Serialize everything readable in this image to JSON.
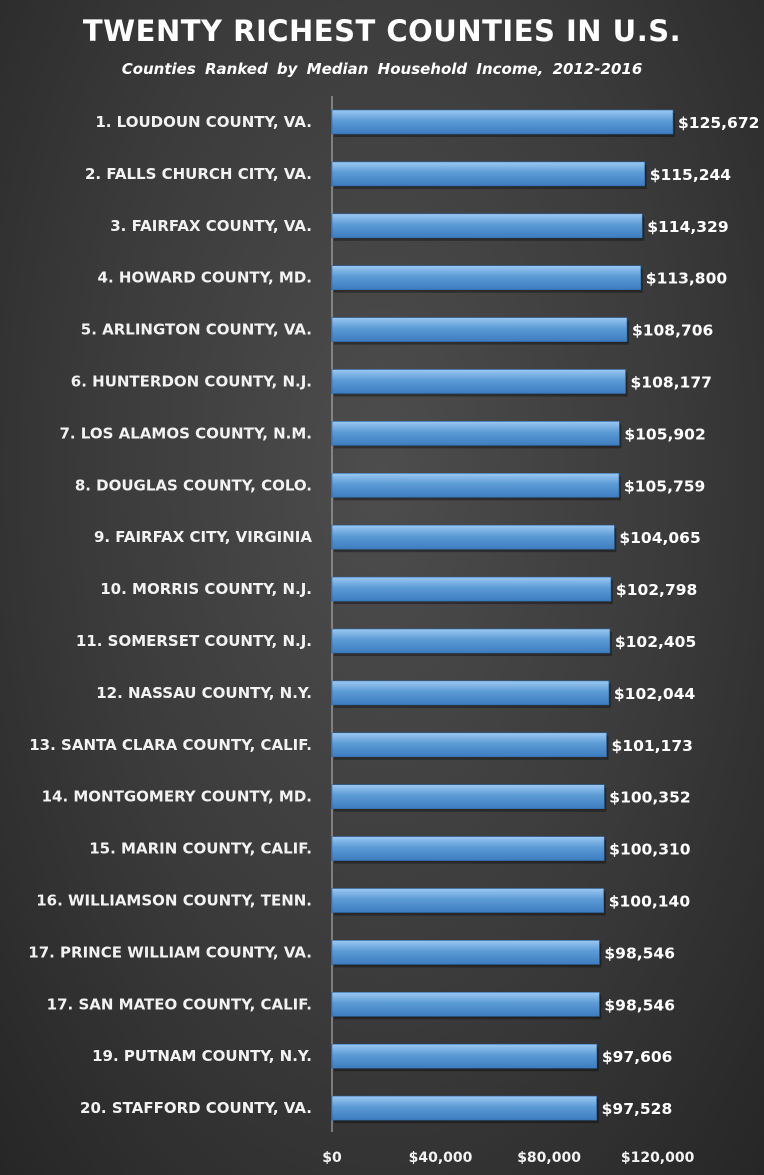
{
  "chart_data": {
    "type": "bar",
    "orientation": "horizontal",
    "title": "TWENTY RICHEST COUNTIES IN U.S.",
    "subtitle": "Counties Ranked by Median Household Income, 2012-2016",
    "categories": [
      "1. LOUDOUN COUNTY, VA.",
      "2. FALLS CHURCH CITY, VA.",
      "3. FAIRFAX COUNTY, VA.",
      "4. HOWARD COUNTY, MD.",
      "5. ARLINGTON COUNTY, VA.",
      "6. HUNTERDON COUNTY, N.J.",
      "7. LOS ALAMOS COUNTY, N.M.",
      "8. DOUGLAS COUNTY, COLO.",
      "9. FAIRFAX CITY, VIRGINIA",
      "10. MORRIS COUNTY, N.J.",
      "11. SOMERSET COUNTY, N.J.",
      "12. NASSAU COUNTY, N.Y.",
      "13. SANTA CLARA COUNTY, CALIF.",
      "14. MONTGOMERY COUNTY, MD.",
      "15. MARIN COUNTY, CALIF.",
      "16. WILLIAMSON COUNTY, TENN.",
      "17. PRINCE WILLIAM COUNTY, VA.",
      "17. SAN MATEO COUNTY, CALIF.",
      "19. PUTNAM COUNTY, N.Y.",
      "20. STAFFORD COUNTY, VA."
    ],
    "values": [
      125672,
      115244,
      114329,
      113800,
      108706,
      108177,
      105902,
      105759,
      104065,
      102798,
      102405,
      102044,
      101173,
      100352,
      100310,
      100140,
      98546,
      98546,
      97606,
      97528
    ],
    "value_labels": [
      "$125,672",
      "$115,244",
      "$114,329",
      "$113,800",
      "$108,706",
      "$108,177",
      "$105,902",
      "$105,759",
      "$104,065",
      "$102,798",
      "$102,405",
      "$102,044",
      "$101,173",
      "$100,352",
      "$100,310",
      "$100,140",
      "$98,546",
      "$98,546",
      "$97,606",
      "$97,528"
    ],
    "xticks": [
      0,
      40000,
      80000,
      120000
    ],
    "xtick_labels": [
      "$0",
      "$40,000",
      "$80,000",
      "$120,000"
    ],
    "xlim": [
      0,
      140000
    ],
    "xlabel": "",
    "ylabel": "",
    "grid": false,
    "legend": "none",
    "bar_color": "#5b9bd5"
  }
}
